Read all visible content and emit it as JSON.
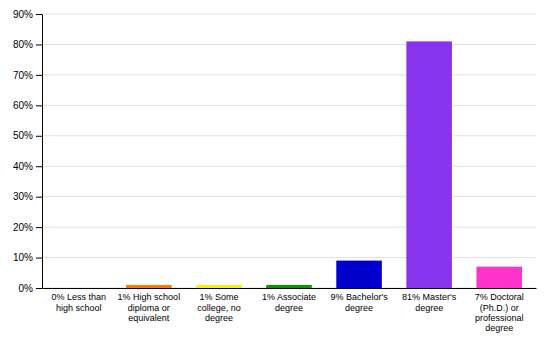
{
  "chart_data": {
    "type": "bar",
    "categories": [
      "0% Less than\nhigh school",
      "1% High school\ndiploma or\nequivalent",
      "1% Some\ncollege, no\ndegree",
      "1% Associate\ndegree",
      "9% Bachelor's\ndegree",
      "81% Master's\ndegree",
      "7% Doctoral\n(Ph.D.) or\nprofessional\ndegree"
    ],
    "values": [
      0,
      1,
      1,
      1,
      9,
      81,
      7
    ],
    "colors": [
      "#dd2200",
      "#ff7700",
      "#ffee00",
      "#009900",
      "#0000cc",
      "#8833ee",
      "#ff33cc"
    ],
    "ylim": [
      0,
      90
    ],
    "yticks": [
      {
        "value": 0,
        "label": "0%"
      },
      {
        "value": 10,
        "label": "10%"
      },
      {
        "value": 20,
        "label": "20%"
      },
      {
        "value": 30,
        "label": "30%"
      },
      {
        "value": 40,
        "label": "40%"
      },
      {
        "value": 50,
        "label": "50%"
      },
      {
        "value": 60,
        "label": "60%"
      },
      {
        "value": 70,
        "label": "70%"
      },
      {
        "value": 80,
        "label": "80%"
      },
      {
        "value": 90,
        "label": "90%"
      }
    ],
    "grid": true
  }
}
